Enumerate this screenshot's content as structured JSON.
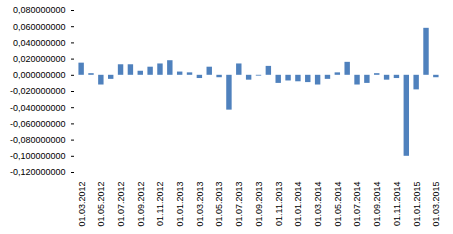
{
  "chart_data": {
    "type": "bar",
    "categories": [
      "01.03.2012",
      null,
      "01.05.2012",
      null,
      "01.07.2012",
      null,
      "01.09.2012",
      null,
      "01.11.2012",
      null,
      "01.01.2013",
      null,
      "01.03.2013",
      null,
      "01.05.2013",
      null,
      "01.07.2013",
      null,
      "01.09.2013",
      null,
      "01.11.2013",
      null,
      "01.01.2014",
      null,
      "01.03.2014",
      null,
      "01.05.2014",
      null,
      "01.07.2014",
      null,
      "01.09.2014",
      null,
      "01.11.2014",
      null,
      "01.01.2015",
      null,
      "01.03.2015"
    ],
    "values": [
      0.015,
      0.002,
      -0.012,
      -0.005,
      0.013,
      0.013,
      0.005,
      0.01,
      0.014,
      0.018,
      0.004,
      0.003,
      -0.004,
      0.01,
      -0.003,
      -0.043,
      0.014,
      -0.006,
      -0.001,
      0.011,
      -0.01,
      -0.007,
      -0.008,
      -0.009,
      -0.012,
      -0.005,
      0.003,
      0.016,
      -0.012,
      -0.01,
      0.002,
      -0.006,
      -0.004,
      -0.1,
      -0.018,
      0.058,
      -0.003
    ],
    "color": "#4f81bd",
    "ylim": [
      -0.12,
      0.08
    ],
    "yticks": [
      {
        "value": -0.12,
        "label": "-0,120000000"
      },
      {
        "value": -0.1,
        "label": "-0,100000000"
      },
      {
        "value": -0.08,
        "label": "-0,080000000"
      },
      {
        "value": -0.06,
        "label": "-0,060000000"
      },
      {
        "value": -0.04,
        "label": "-0,040000000"
      },
      {
        "value": -0.02,
        "label": "-0,020000000"
      },
      {
        "value": 0,
        "label": "0,000000000"
      },
      {
        "value": 0.02,
        "label": "0,020000000"
      },
      {
        "value": 0.04,
        "label": "0,040000000"
      },
      {
        "value": 0.06,
        "label": "0,060000000"
      },
      {
        "value": 0.08,
        "label": "0,080000000"
      }
    ],
    "grid": false
  }
}
